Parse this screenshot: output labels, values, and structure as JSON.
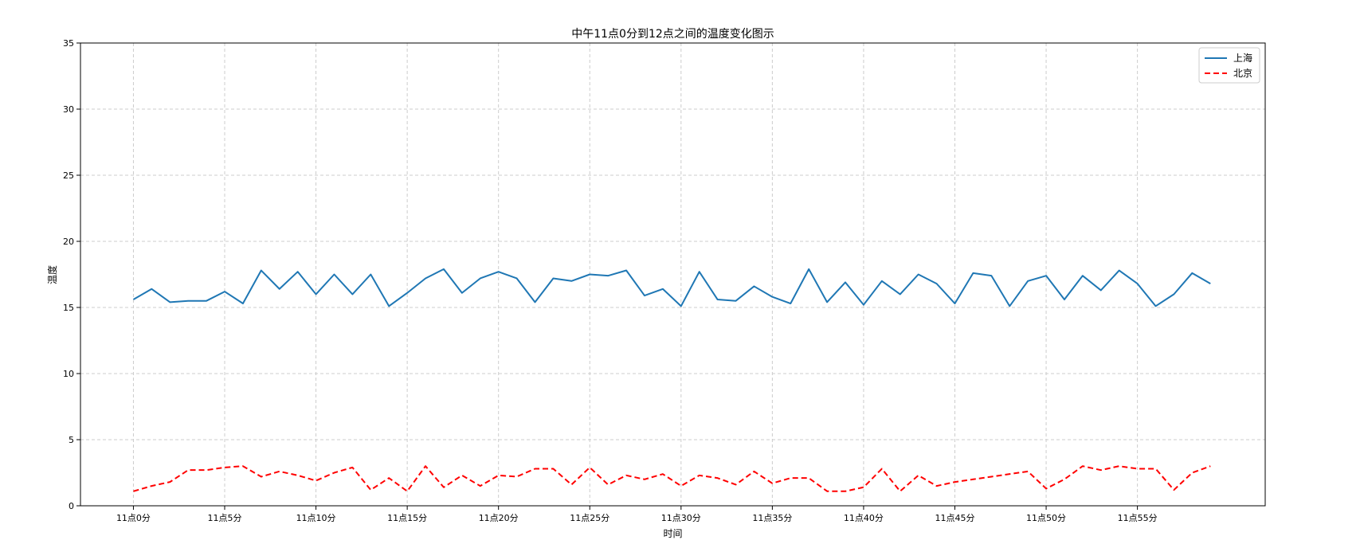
{
  "chart_data": {
    "type": "line",
    "title": "中午11点0分到12点之间的温度变化图示",
    "xlabel": "时间",
    "ylabel": "温度",
    "x": [
      0,
      1,
      2,
      3,
      4,
      5,
      6,
      7,
      8,
      9,
      10,
      11,
      12,
      13,
      14,
      15,
      16,
      17,
      18,
      19,
      20,
      21,
      22,
      23,
      24,
      25,
      26,
      27,
      28,
      29,
      30,
      31,
      32,
      33,
      34,
      35,
      36,
      37,
      38,
      39,
      40,
      41,
      42,
      43,
      44,
      45,
      46,
      47,
      48,
      49,
      50,
      51,
      52,
      53,
      54,
      55,
      56,
      57,
      58,
      59
    ],
    "xlim": [
      -2.9,
      62.0
    ],
    "xticks": [
      0,
      5,
      10,
      15,
      20,
      25,
      30,
      35,
      40,
      45,
      50,
      55
    ],
    "xtick_labels": [
      "11点0分",
      "11点5分",
      "11点10分",
      "11点15分",
      "11点20分",
      "11点25分",
      "11点30分",
      "11点35分",
      "11点40分",
      "11点45分",
      "11点50分",
      "11点55分"
    ],
    "ylim": [
      0,
      35
    ],
    "yticks": [
      0,
      5,
      10,
      15,
      20,
      25,
      30,
      35
    ],
    "grid": true,
    "grid_style": "dashed",
    "legend_position": "top-right",
    "series": [
      {
        "name": "上海",
        "color": "#1f77b4",
        "linestyle": "solid",
        "values": [
          15.6,
          16.4,
          15.4,
          15.5,
          15.5,
          16.2,
          15.3,
          17.8,
          16.4,
          17.7,
          16.0,
          17.5,
          16.0,
          17.5,
          15.1,
          16.1,
          17.2,
          17.9,
          16.1,
          17.2,
          17.7,
          17.2,
          15.4,
          17.2,
          17.0,
          17.5,
          17.4,
          17.8,
          15.9,
          16.4,
          15.1,
          17.7,
          15.6,
          15.5,
          16.6,
          15.8,
          15.3,
          17.9,
          15.4,
          16.9,
          15.2,
          17.0,
          16.0,
          17.5,
          16.8,
          15.3,
          17.6,
          17.4,
          15.1,
          17.0,
          17.4,
          15.6,
          17.4,
          16.3,
          17.8,
          16.8,
          15.1,
          16.0,
          17.6,
          16.8
        ]
      },
      {
        "name": "北京",
        "color": "#ff0000",
        "linestyle": "dashed",
        "values": [
          1.1,
          1.5,
          1.8,
          2.7,
          2.7,
          2.9,
          3.0,
          2.2,
          2.6,
          2.3,
          1.9,
          2.5,
          2.9,
          1.2,
          2.1,
          1.1,
          3.0,
          1.4,
          2.3,
          1.5,
          2.3,
          2.2,
          2.8,
          2.8,
          1.6,
          2.9,
          1.6,
          2.3,
          2.0,
          2.4,
          1.5,
          2.3,
          2.1,
          1.6,
          2.6,
          1.7,
          2.1,
          2.1,
          1.1,
          1.1,
          1.4,
          2.8,
          1.1,
          2.3,
          1.5,
          1.8,
          2.0,
          2.2,
          2.4,
          2.6,
          1.3,
          2.0,
          3.0,
          2.7,
          3.0,
          2.8,
          2.8,
          1.2,
          2.5,
          3.0
        ]
      }
    ]
  }
}
